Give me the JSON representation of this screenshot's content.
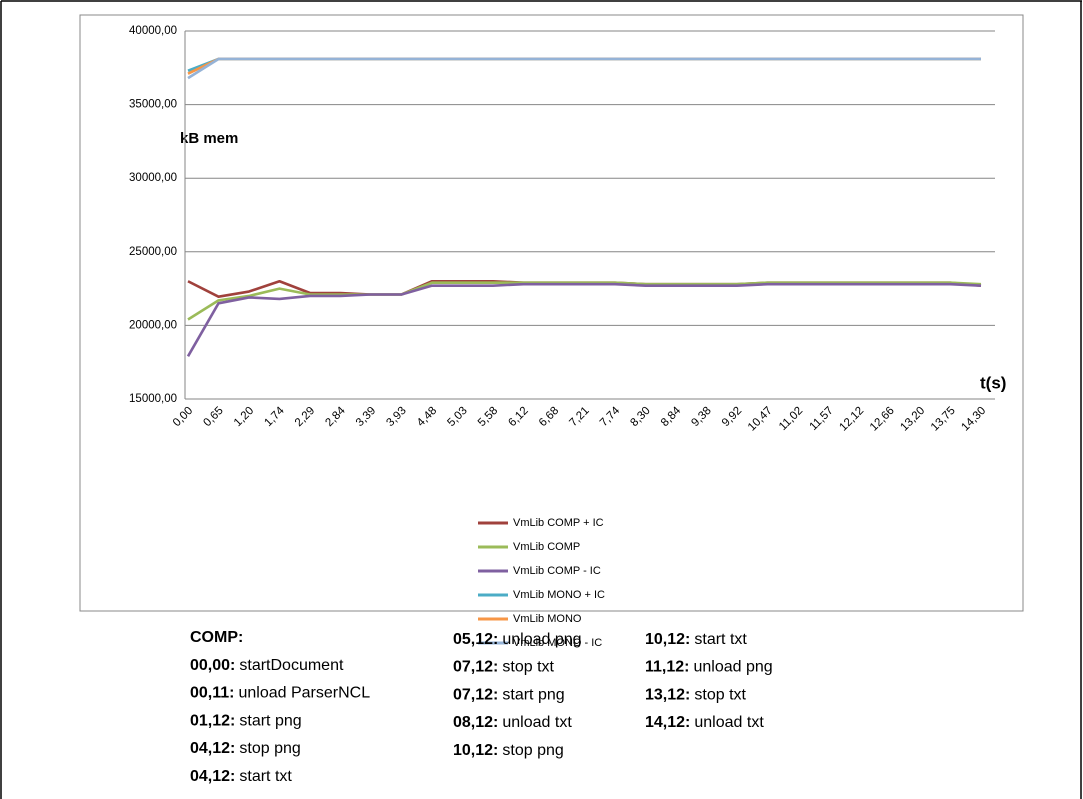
{
  "chart_data": {
    "type": "line",
    "annotations": [
      "kB mem",
      "t(s)"
    ],
    "categories": [
      "0,00",
      "0,65",
      "1,20",
      "1,74",
      "2,29",
      "2,84",
      "3,39",
      "3,93",
      "4,48",
      "5,03",
      "5,58",
      "6,12",
      "6,68",
      "7,21",
      "7,74",
      "8,30",
      "8,84",
      "9,38",
      "9,92",
      "10,47",
      "11,02",
      "11,57",
      "12,12",
      "12,66",
      "13,20",
      "13,75",
      "14,30"
    ],
    "series": [
      {
        "name": "VmLib COMP + IC",
        "color": "#a0413c",
        "values": [
          23000,
          21950,
          22300,
          23000,
          22200,
          22200,
          22100,
          22100,
          23000,
          23000,
          23000,
          22900,
          22900,
          22900,
          22900,
          22800,
          22800,
          22800,
          22800,
          22900,
          22900,
          22900,
          22900,
          22900,
          22900,
          22900,
          22700
        ]
      },
      {
        "name": "VmLib COMP",
        "color": "#9bbb59",
        "values": [
          20400,
          21700,
          22000,
          22500,
          22100,
          22100,
          22100,
          22100,
          22900,
          22900,
          22900,
          22900,
          22900,
          22900,
          22900,
          22800,
          22800,
          22800,
          22800,
          22900,
          22900,
          22900,
          22900,
          22900,
          22900,
          22900,
          22800
        ]
      },
      {
        "name": "VmLib COMP - IC",
        "color": "#7f60a0",
        "values": [
          17900,
          21500,
          21900,
          21800,
          22000,
          22000,
          22100,
          22100,
          22700,
          22700,
          22700,
          22800,
          22800,
          22800,
          22800,
          22700,
          22700,
          22700,
          22700,
          22800,
          22800,
          22800,
          22800,
          22800,
          22800,
          22800,
          22700
        ]
      },
      {
        "name": "VmLib MONO + IC",
        "color": "#4bacc6",
        "values": [
          37300,
          38100,
          38100,
          38100,
          38100,
          38100,
          38100,
          38100,
          38100,
          38100,
          38100,
          38100,
          38100,
          38100,
          38100,
          38100,
          38100,
          38100,
          38100,
          38100,
          38100,
          38100,
          38100,
          38100,
          38100,
          38100,
          38100
        ]
      },
      {
        "name": "VmLib MONO",
        "color": "#f79646",
        "values": [
          37100,
          38100,
          38100,
          38100,
          38100,
          38100,
          38100,
          38100,
          38100,
          38100,
          38100,
          38100,
          38100,
          38100,
          38100,
          38100,
          38100,
          38100,
          38100,
          38100,
          38100,
          38100,
          38100,
          38100,
          38100,
          38100,
          38100
        ]
      },
      {
        "name": "VmLib MONO - IC",
        "color": "#95b3d7",
        "values": [
          36800,
          38100,
          38100,
          38100,
          38100,
          38100,
          38100,
          38100,
          38100,
          38100,
          38100,
          38100,
          38100,
          38100,
          38100,
          38100,
          38100,
          38100,
          38100,
          38100,
          38100,
          38100,
          38100,
          38100,
          38100,
          38100,
          38100
        ]
      }
    ],
    "ylim": [
      15000,
      40000
    ],
    "yticks": [
      {
        "value": 15000,
        "label": "15000,00"
      },
      {
        "value": 20000,
        "label": "20000,00"
      },
      {
        "value": 25000,
        "label": "25000,00"
      },
      {
        "value": 30000,
        "label": "30000,00"
      },
      {
        "value": 35000,
        "label": "35000,00"
      },
      {
        "value": 40000,
        "label": "40000,00"
      }
    ],
    "grid": true,
    "legend": "bottom"
  },
  "notes": {
    "title": "COMP:",
    "columns": [
      [
        {
          "key": "00,00:",
          "text": "startDocument"
        },
        {
          "key": "00,11:",
          "text": "unload ParserNCL"
        },
        {
          "key": "01,12:",
          "text": "start png"
        },
        {
          "key": "04,12:",
          "text": "stop png"
        },
        {
          "key": "04,12:",
          "text": "start txt"
        }
      ],
      [
        {
          "key": "05,12:",
          "text": "unload png"
        },
        {
          "key": "07,12:",
          "text": "stop txt"
        },
        {
          "key": "07,12:",
          "text": "start png"
        },
        {
          "key": "08,12:",
          "text": "unload txt"
        },
        {
          "key": "10,12:",
          "text": "stop png"
        }
      ],
      [
        {
          "key": "10,12:",
          "text": "start txt"
        },
        {
          "key": "11,12:",
          "text": "unload png"
        },
        {
          "key": "13,12:",
          "text": "stop txt"
        },
        {
          "key": "14,12:",
          "text": "unload txt"
        }
      ]
    ]
  }
}
